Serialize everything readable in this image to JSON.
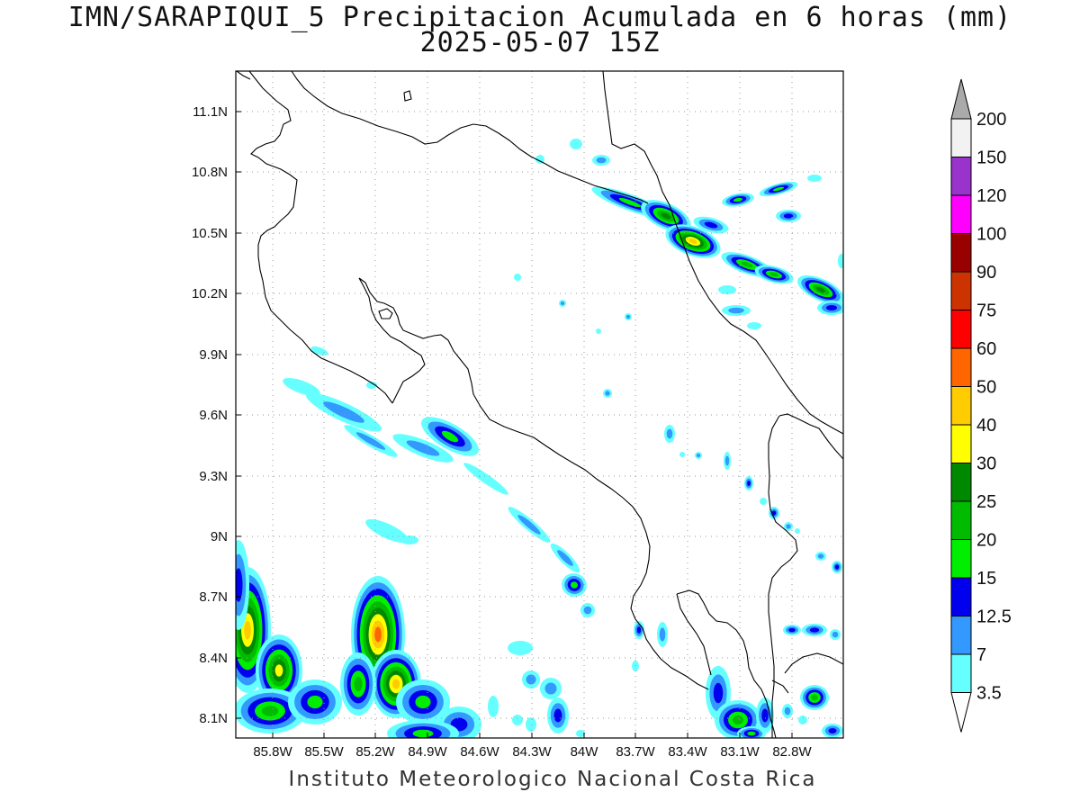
{
  "title": {
    "line1": "IMN/SARAPIQUI_5 Precipitacion Acumulada en 6 horas (mm)",
    "line2": "2025-05-07 15Z"
  },
  "credit": "Instituto Meteorologico Nacional Costa Rica",
  "map": {
    "lat_labels": [
      "11.1N",
      "10.8N",
      "10.5N",
      "10.2N",
      "9.9N",
      "9.6N",
      "9.3N",
      "9N",
      "8.7N",
      "8.4N",
      "8.1N"
    ],
    "lon_labels": [
      "85.8W",
      "85.5W",
      "85.2W",
      "84.9W",
      "84.6W",
      "84.3W",
      "84W",
      "83.7W",
      "83.4W",
      "83.1W",
      "82.8W"
    ],
    "grid": "dotted",
    "field": "Precipitacion Acumulada en 6 horas",
    "units": "mm"
  },
  "legend": {
    "labels": [
      "200",
      "150",
      "120",
      "100",
      "90",
      "75",
      "60",
      "50",
      "40",
      "30",
      "25",
      "20",
      "15",
      "12.5",
      "7",
      "3.5"
    ],
    "colors": {
      "c3_5": "#66ffff",
      "c7": "#3399ff",
      "c12_5": "#0000ee",
      "c15": "#00ee00",
      "c20": "#00bb00",
      "c25": "#008800",
      "c30": "#ffff00",
      "c40": "#ffcc00",
      "c50": "#ff6600",
      "c60": "#ff0000",
      "c75": "#cc3300",
      "c90": "#990000",
      "c100": "#ff00ff",
      "c120": "#9933cc",
      "c150": "#f2f2f2",
      "c200": "#aaaaaa"
    }
  }
}
